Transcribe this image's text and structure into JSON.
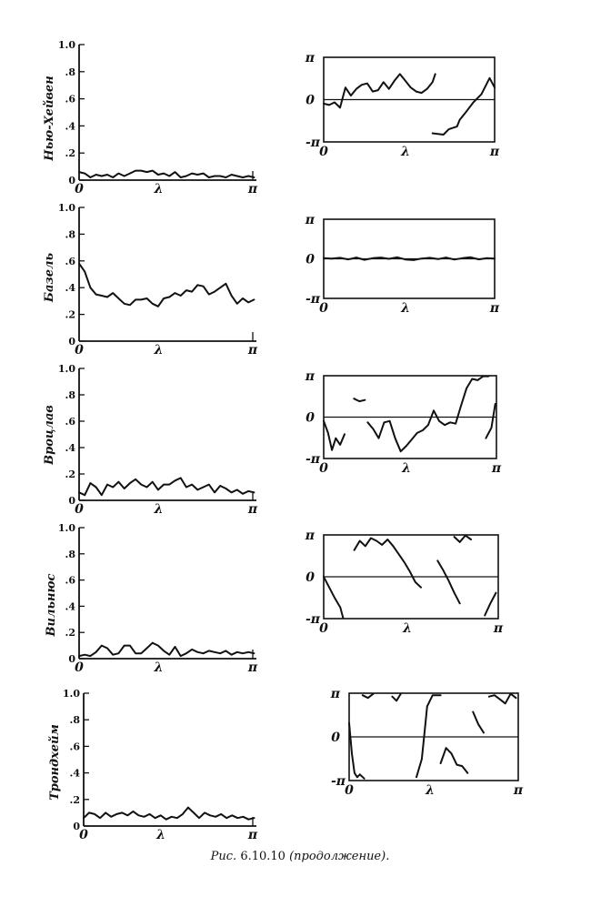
{
  "caption": {
    "prefix": "Рис.",
    "number": "6.10.10",
    "suffix": "(продолжение)."
  },
  "axis_text": {
    "x_label": "λ",
    "x_start": "0",
    "x_end": "π",
    "phase_top": "π",
    "phase_zero": "0",
    "phase_bottom": "-π",
    "coh_ticks": [
      "0",
      ".2",
      ".4",
      ".6",
      ".8",
      "1.0"
    ]
  },
  "chart_data": [
    {
      "type": "line",
      "panel": "coherence",
      "ylabel": "Нью-Хейвен",
      "xlabel": "λ",
      "xlim": [
        0,
        3.1416
      ],
      "ylim": [
        0,
        1
      ],
      "grid": false,
      "x": [
        0,
        0.1,
        0.2,
        0.3,
        0.4,
        0.5,
        0.6,
        0.7,
        0.8,
        0.9,
        1.0,
        1.1,
        1.2,
        1.3,
        1.4,
        1.5,
        1.6,
        1.7,
        1.8,
        1.9,
        2.0,
        2.1,
        2.2,
        2.3,
        2.4,
        2.5,
        2.6,
        2.7,
        2.8,
        2.9,
        3.0,
        3.1
      ],
      "series": [
        {
          "values": [
            0.06,
            0.05,
            0.02,
            0.04,
            0.03,
            0.04,
            0.02,
            0.05,
            0.03,
            0.05,
            0.07,
            0.07,
            0.06,
            0.07,
            0.04,
            0.05,
            0.03,
            0.06,
            0.02,
            0.03,
            0.05,
            0.04,
            0.05,
            0.02,
            0.03,
            0.03,
            0.02,
            0.04,
            0.03,
            0.02,
            0.03,
            0.02
          ]
        }
      ]
    },
    {
      "type": "line",
      "panel": "phase",
      "xlabel": "λ",
      "xlim": [
        0,
        3.1416
      ],
      "ylim": [
        -3.1416,
        3.1416
      ],
      "grid": false,
      "series": [
        {
          "x": [
            0,
            0.1,
            0.2,
            0.3,
            0.4,
            0.5,
            0.6,
            0.7,
            0.8,
            0.9,
            1.0,
            1.1,
            1.2,
            1.3,
            1.4,
            1.5,
            1.6,
            1.7,
            1.8,
            1.9,
            2.0,
            2.05
          ],
          "y": [
            -0.3,
            -0.4,
            -0.2,
            -0.6,
            0.9,
            0.3,
            0.8,
            1.1,
            1.2,
            0.6,
            0.7,
            1.3,
            0.8,
            1.4,
            1.9,
            1.4,
            0.9,
            0.6,
            0.5,
            0.8,
            1.3,
            1.9
          ]
        },
        {
          "x": [
            2.0,
            2.2,
            2.3,
            2.45,
            2.5,
            2.6,
            2.75,
            2.9,
            3.0,
            3.05,
            3.1416
          ],
          "y": [
            -2.5,
            -2.6,
            -2.2,
            -2.0,
            -1.5,
            -1.0,
            -0.2,
            0.4,
            1.2,
            1.6,
            0.9
          ]
        }
      ]
    },
    {
      "type": "line",
      "panel": "coherence",
      "ylabel": "Базель",
      "xlabel": "λ",
      "xlim": [
        0,
        3.1416
      ],
      "ylim": [
        0,
        1
      ],
      "grid": false,
      "x": [
        0,
        0.1,
        0.2,
        0.3,
        0.4,
        0.5,
        0.6,
        0.7,
        0.8,
        0.9,
        1.0,
        1.1,
        1.2,
        1.3,
        1.4,
        1.5,
        1.6,
        1.7,
        1.8,
        1.9,
        2.0,
        2.1,
        2.2,
        2.3,
        2.4,
        2.5,
        2.6,
        2.7,
        2.8,
        2.9,
        3.0,
        3.1
      ],
      "series": [
        {
          "values": [
            0.58,
            0.52,
            0.4,
            0.35,
            0.34,
            0.33,
            0.36,
            0.32,
            0.28,
            0.27,
            0.31,
            0.31,
            0.32,
            0.28,
            0.26,
            0.32,
            0.33,
            0.36,
            0.34,
            0.38,
            0.37,
            0.42,
            0.41,
            0.35,
            0.37,
            0.4,
            0.43,
            0.34,
            0.28,
            0.32,
            0.29,
            0.31
          ]
        }
      ]
    },
    {
      "type": "line",
      "panel": "phase",
      "xlabel": "λ",
      "xlim": [
        0,
        3.1416
      ],
      "ylim": [
        -3.1416,
        3.1416
      ],
      "grid": false,
      "series": [
        {
          "x": [
            0,
            0.15,
            0.3,
            0.45,
            0.6,
            0.75,
            0.9,
            1.05,
            1.2,
            1.35,
            1.5,
            1.65,
            1.8,
            1.95,
            2.1,
            2.25,
            2.4,
            2.55,
            2.7,
            2.85,
            3.0,
            3.1416
          ],
          "y": [
            0.05,
            0.02,
            0.08,
            -0.05,
            0.1,
            -0.08,
            0.05,
            0.1,
            0.0,
            0.12,
            -0.05,
            -0.1,
            0.02,
            0.08,
            -0.02,
            0.1,
            -0.06,
            0.05,
            0.12,
            -0.04,
            0.06,
            0.02
          ]
        }
      ]
    },
    {
      "type": "line",
      "panel": "coherence",
      "ylabel": "Вроцлав",
      "xlabel": "λ",
      "xlim": [
        0,
        3.1416
      ],
      "ylim": [
        0,
        1
      ],
      "grid": false,
      "x": [
        0,
        0.1,
        0.2,
        0.3,
        0.4,
        0.5,
        0.6,
        0.7,
        0.8,
        0.9,
        1.0,
        1.1,
        1.2,
        1.3,
        1.4,
        1.5,
        1.6,
        1.7,
        1.8,
        1.9,
        2.0,
        2.1,
        2.2,
        2.3,
        2.4,
        2.5,
        2.6,
        2.7,
        2.8,
        2.9,
        3.0,
        3.1
      ],
      "series": [
        {
          "values": [
            0.06,
            0.04,
            0.13,
            0.1,
            0.04,
            0.12,
            0.1,
            0.14,
            0.09,
            0.13,
            0.16,
            0.12,
            0.1,
            0.14,
            0.08,
            0.12,
            0.12,
            0.15,
            0.17,
            0.1,
            0.12,
            0.08,
            0.1,
            0.12,
            0.06,
            0.11,
            0.09,
            0.06,
            0.08,
            0.05,
            0.07,
            0.06
          ]
        }
      ]
    },
    {
      "type": "line",
      "panel": "phase",
      "xlabel": "λ",
      "xlim": [
        0,
        3.1416
      ],
      "ylim": [
        -3.1416,
        3.1416
      ],
      "grid": false,
      "series": [
        {
          "x": [
            0,
            0.08,
            0.15,
            0.22,
            0.3,
            0.38
          ],
          "y": [
            -0.3,
            -1.2,
            -2.5,
            -1.6,
            -2.1,
            -1.3
          ]
        },
        {
          "x": [
            0.55,
            0.65,
            0.75
          ],
          "y": [
            1.4,
            1.2,
            1.3
          ]
        },
        {
          "x": [
            0.8,
            0.9,
            1.0,
            1.1,
            1.2,
            1.3,
            1.4,
            1.5,
            1.6,
            1.7,
            1.8,
            1.9,
            2.0,
            2.1,
            2.2,
            2.3,
            2.4,
            2.5,
            2.6,
            2.7,
            2.8,
            2.9,
            3.0
          ],
          "y": [
            -0.4,
            -0.9,
            -1.6,
            -0.4,
            -0.3,
            -1.6,
            -2.6,
            -2.2,
            -1.7,
            -1.2,
            -1.0,
            -0.6,
            0.5,
            -0.3,
            -0.6,
            -0.4,
            -0.5,
            0.9,
            2.2,
            2.9,
            2.8,
            3.1,
            3.1
          ]
        },
        {
          "x": [
            2.95,
            3.05,
            3.12
          ],
          "y": [
            -1.6,
            -0.8,
            1.0
          ]
        }
      ]
    },
    {
      "type": "line",
      "panel": "coherence",
      "ylabel": "Вильнюс",
      "xlabel": "λ",
      "xlim": [
        0,
        3.1416
      ],
      "ylim": [
        0,
        1
      ],
      "grid": false,
      "x": [
        0,
        0.1,
        0.2,
        0.3,
        0.4,
        0.5,
        0.6,
        0.7,
        0.8,
        0.9,
        1.0,
        1.1,
        1.2,
        1.3,
        1.4,
        1.5,
        1.6,
        1.7,
        1.8,
        1.9,
        2.0,
        2.1,
        2.2,
        2.3,
        2.4,
        2.5,
        2.6,
        2.7,
        2.8,
        2.9,
        3.0,
        3.1
      ],
      "series": [
        {
          "values": [
            0.02,
            0.03,
            0.02,
            0.05,
            0.1,
            0.08,
            0.03,
            0.04,
            0.1,
            0.1,
            0.04,
            0.04,
            0.08,
            0.12,
            0.1,
            0.06,
            0.03,
            0.09,
            0.02,
            0.04,
            0.07,
            0.05,
            0.04,
            0.06,
            0.05,
            0.04,
            0.06,
            0.03,
            0.05,
            0.04,
            0.05,
            0.04
          ]
        }
      ]
    },
    {
      "type": "line",
      "panel": "phase",
      "xlabel": "λ",
      "xlim": [
        0,
        3.1416
      ],
      "ylim": [
        -3.1416,
        3.1416
      ],
      "grid": false,
      "series": [
        {
          "x": [
            0,
            0.1,
            0.2,
            0.3,
            0.35
          ],
          "y": [
            0.0,
            -0.8,
            -1.6,
            -2.3,
            -3.1
          ]
        },
        {
          "x": [
            0.55,
            0.65,
            0.75,
            0.85,
            0.95,
            1.05,
            1.15,
            1.25,
            1.35,
            1.45,
            1.55,
            1.65,
            1.75
          ],
          "y": [
            2.0,
            2.7,
            2.3,
            2.9,
            2.7,
            2.4,
            2.8,
            2.3,
            1.7,
            1.1,
            0.4,
            -0.4,
            -0.8
          ]
        },
        {
          "x": [
            2.05,
            2.15,
            2.25,
            2.35,
            2.45
          ],
          "y": [
            1.2,
            0.5,
            -0.3,
            -1.2,
            -2.0
          ]
        },
        {
          "x": [
            2.35,
            2.45,
            2.55,
            2.65
          ],
          "y": [
            3.0,
            2.6,
            3.1,
            2.8
          ]
        },
        {
          "x": [
            2.9,
            3.0,
            3.1
          ],
          "y": [
            -2.9,
            -2.0,
            -1.2
          ]
        }
      ]
    },
    {
      "type": "line",
      "panel": "coherence",
      "ylabel": "Трондхейм",
      "xlabel": "λ",
      "xlim": [
        0,
        3.1416
      ],
      "ylim": [
        0,
        1
      ],
      "grid": false,
      "x": [
        0,
        0.1,
        0.2,
        0.3,
        0.4,
        0.5,
        0.6,
        0.7,
        0.8,
        0.9,
        1.0,
        1.1,
        1.2,
        1.3,
        1.4,
        1.5,
        1.6,
        1.7,
        1.8,
        1.9,
        2.0,
        2.1,
        2.2,
        2.3,
        2.4,
        2.5,
        2.6,
        2.7,
        2.8,
        2.9,
        3.0,
        3.1
      ],
      "series": [
        {
          "values": [
            0.06,
            0.1,
            0.09,
            0.06,
            0.1,
            0.07,
            0.09,
            0.1,
            0.08,
            0.11,
            0.08,
            0.07,
            0.09,
            0.06,
            0.08,
            0.05,
            0.07,
            0.06,
            0.09,
            0.14,
            0.1,
            0.06,
            0.1,
            0.08,
            0.07,
            0.09,
            0.06,
            0.08,
            0.06,
            0.07,
            0.05,
            0.06
          ]
        }
      ]
    },
    {
      "type": "line",
      "panel": "phase",
      "xlabel": "λ",
      "xlim": [
        0,
        3.1416
      ],
      "ylim": [
        -3.1416,
        3.1416
      ],
      "grid": false,
      "series": [
        {
          "x": [
            0,
            0.05,
            0.1,
            0.15,
            0.2,
            0.28
          ],
          "y": [
            1.0,
            -1.2,
            -2.6,
            -2.9,
            -2.7,
            -3.0
          ]
        },
        {
          "x": [
            0.25,
            0.35,
            0.45
          ],
          "y": [
            3.0,
            2.8,
            3.1
          ]
        },
        {
          "x": [
            0.8,
            0.88,
            0.96
          ],
          "y": [
            2.9,
            2.6,
            3.1
          ]
        },
        {
          "x": [
            1.25,
            1.35,
            1.4,
            1.45,
            1.55,
            1.7
          ],
          "y": [
            -2.9,
            -1.6,
            0.3,
            2.2,
            3.0,
            3.0
          ]
        },
        {
          "x": [
            1.7,
            1.8,
            1.9,
            2.0,
            2.1,
            2.2
          ],
          "y": [
            -1.9,
            -0.8,
            -1.2,
            -2.0,
            -2.1,
            -2.6
          ]
        },
        {
          "x": [
            2.3,
            2.4,
            2.5
          ],
          "y": [
            1.8,
            0.9,
            0.3
          ]
        },
        {
          "x": [
            2.6,
            2.7,
            2.8,
            2.9,
            3.0,
            3.1
          ],
          "y": [
            2.9,
            3.0,
            2.7,
            2.4,
            3.1,
            2.8
          ]
        }
      ]
    }
  ]
}
